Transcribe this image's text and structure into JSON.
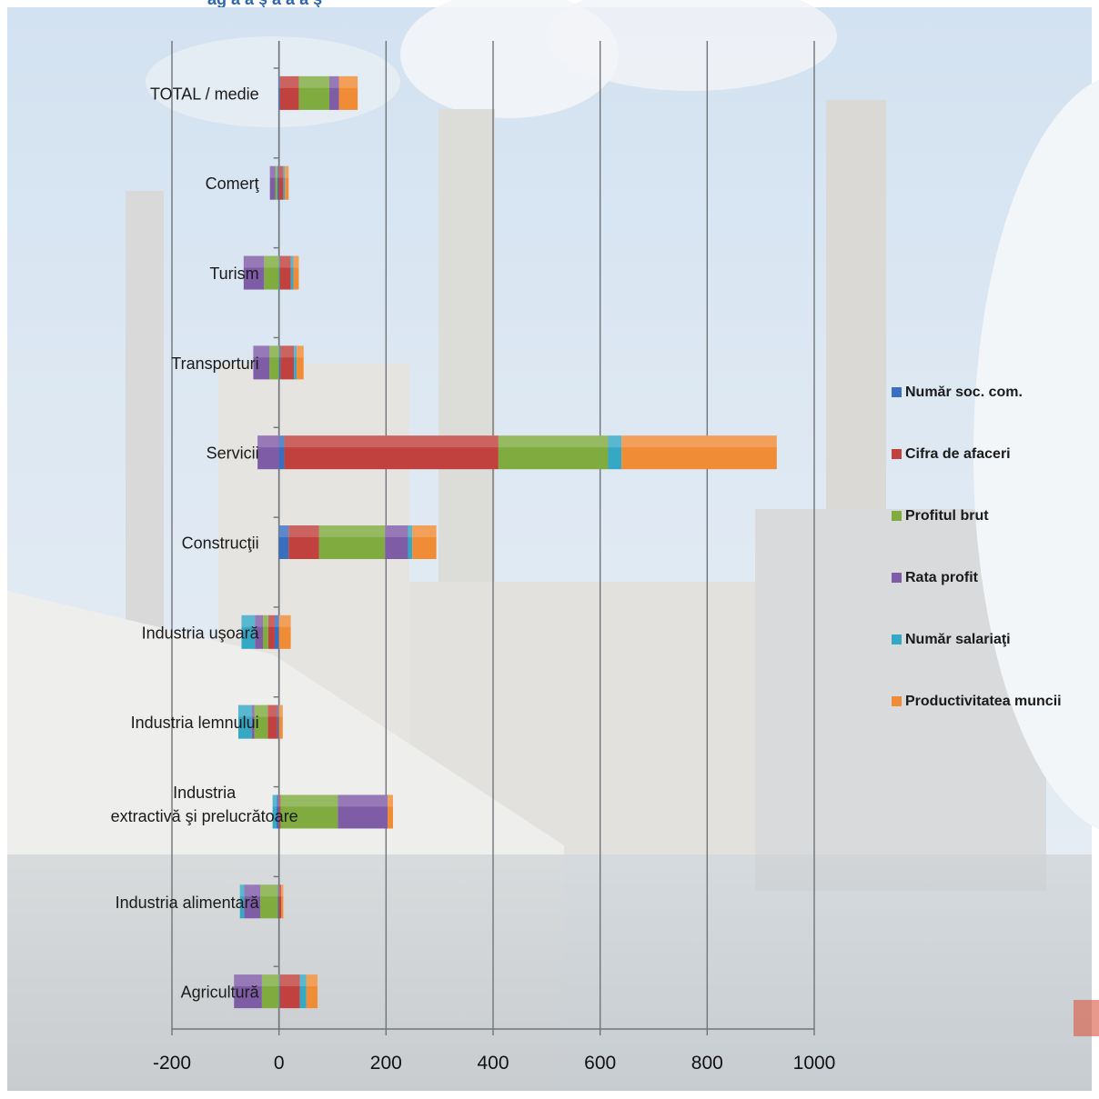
{
  "chart_data": {
    "type": "bar",
    "orientation": "horizontal",
    "stacked": true,
    "title": "",
    "xlabel": "",
    "ylabel": "",
    "xlim": [
      -200,
      1000
    ],
    "x_ticks": [
      "-200",
      "0",
      "200",
      "400",
      "600",
      "800",
      "1000"
    ],
    "grid": "vertical",
    "legend_position": "right",
    "categories": [
      "TOTAL / medie",
      "Comerţ",
      "Turism",
      "Transporturi",
      "Servicii",
      "Construcţii",
      "Industria uşoară",
      "Industria lemnului",
      "Industria extractivă şi prelucrătoare",
      "Industria alimentară",
      "Agricultură"
    ],
    "series": [
      {
        "name": "Număr soc. com.",
        "color": "#3a6fbf",
        "values": [
          2,
          -3,
          2,
          3,
          10,
          18,
          -8,
          -3,
          -5,
          -2,
          2
        ]
      },
      {
        "name": "Cifra de afaceri",
        "color": "#c0413d",
        "values": [
          35,
          8,
          20,
          25,
          400,
          57,
          -12,
          -18,
          3,
          4,
          37
        ]
      },
      {
        "name": "Profitul brut",
        "color": "#7fab3f",
        "values": [
          57,
          -4,
          -28,
          -18,
          205,
          123,
          -10,
          -25,
          107,
          -33,
          -32
        ]
      },
      {
        "name": "Rata profit",
        "color": "#7f5ca6",
        "values": [
          18,
          -10,
          -38,
          -30,
          -40,
          43,
          -15,
          -5,
          93,
          -30,
          -52
        ]
      },
      {
        "name": "Număr salariaţi",
        "color": "#35a8c6",
        "values": [
          0,
          3,
          5,
          5,
          25,
          8,
          -25,
          -25,
          -7,
          -8,
          12
        ]
      },
      {
        "name": "Productivitatea muncii",
        "color": "#f08c35",
        "values": [
          35,
          7,
          10,
          13,
          290,
          45,
          22,
          7,
          10,
          4,
          21
        ]
      }
    ]
  }
}
